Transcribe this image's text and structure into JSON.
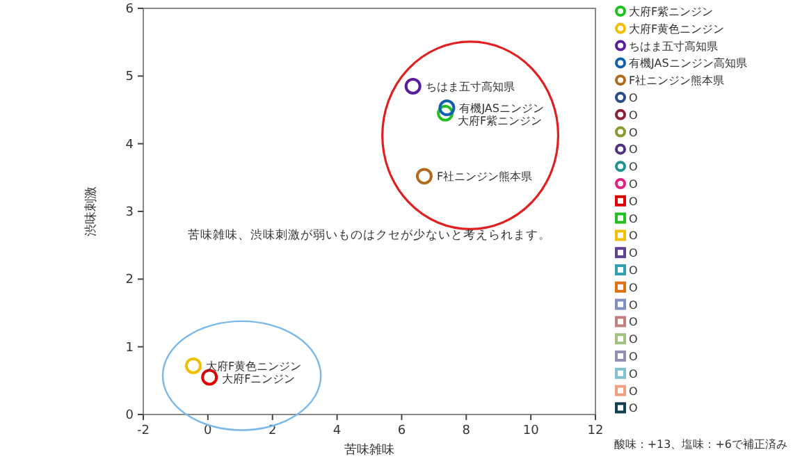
{
  "chart_data": {
    "type": "scatter",
    "xlabel": "苦味雑味",
    "ylabel": "渋味刺激",
    "xlim": [
      -2,
      12
    ],
    "ylim": [
      0,
      6
    ],
    "xticks": [
      -2,
      0,
      2,
      4,
      6,
      8,
      10,
      12
    ],
    "yticks": [
      0,
      1,
      2,
      3,
      4,
      5,
      6
    ],
    "grid": false,
    "legend": "right",
    "series": [
      {
        "name": "大府F紫ニンジン",
        "color": "#20c020",
        "marker": "circle",
        "x": [
          7.35
        ],
        "values": [
          4.45
        ]
      },
      {
        "color": "#e00000",
        "marker": "circle",
        "x": [
          0.05
        ],
        "values": [
          0.55
        ]
      },
      {
        "name": "大府F黄色ニンジン",
        "color": "#f0c000",
        "marker": "circle",
        "x": [
          -0.45
        ],
        "values": [
          0.72
        ]
      },
      {
        "name": "ちはま五寸高知県",
        "color": "#5a1e9a",
        "marker": "circle",
        "x": [
          6.35
        ],
        "values": [
          4.85
        ]
      },
      {
        "name": "有機JASニンジン高知県",
        "color": "#1060b0",
        "marker": "circle",
        "x": [
          7.4
        ],
        "values": [
          4.53
        ]
      },
      {
        "name": "F社ニンジン熊本県",
        "color": "#b06a1e",
        "marker": "circle",
        "x": [
          6.7
        ],
        "values": [
          3.52
        ]
      },
      {
        "name": "O",
        "color": "#2a4a8a",
        "marker": "circle"
      },
      {
        "name": "O",
        "color": "#8a2030",
        "marker": "circle"
      },
      {
        "name": "O",
        "color": "#8a9a30",
        "marker": "circle"
      },
      {
        "name": "O",
        "color": "#503080",
        "marker": "circle"
      },
      {
        "name": "O",
        "color": "#209090",
        "marker": "circle"
      },
      {
        "name": "O",
        "color": "#e02080",
        "marker": "circle"
      },
      {
        "name": "O",
        "color": "#e00000",
        "marker": "square"
      },
      {
        "name": "O",
        "color": "#20c020",
        "marker": "square"
      },
      {
        "name": "O",
        "color": "#f0c000",
        "marker": "square"
      },
      {
        "name": "O",
        "color": "#604090",
        "marker": "square"
      },
      {
        "name": "O",
        "color": "#30a0b0",
        "marker": "square"
      },
      {
        "name": "O",
        "color": "#e07010",
        "marker": "square"
      },
      {
        "name": "O",
        "color": "#8090c0",
        "marker": "square"
      },
      {
        "name": "O",
        "color": "#c08080",
        "marker": "square"
      },
      {
        "name": "O",
        "color": "#a0c080",
        "marker": "square"
      },
      {
        "name": "O",
        "color": "#9090b0",
        "marker": "square"
      },
      {
        "name": "O",
        "color": "#80c0d0",
        "marker": "square"
      },
      {
        "name": "O",
        "color": "#f0a080",
        "marker": "square"
      },
      {
        "name": "O",
        "color": "#104050",
        "marker": "square"
      }
    ],
    "annotations": [
      {
        "text": "大府F紫ニンジン",
        "x": 7.35,
        "y": 4.45
      },
      {
        "text": "大府Fニンジン",
        "x": 0.05,
        "y": 0.55
      },
      {
        "text": "大府F黄色ニンジン",
        "x": -0.45,
        "y": 0.72
      },
      {
        "text": "ちはま五寸高知県",
        "x": 6.35,
        "y": 4.85
      },
      {
        "text": "有機JASニンジン",
        "x": 7.4,
        "y": 4.53
      },
      {
        "text": "F社ニンジン熊本県",
        "x": 6.7,
        "y": 3.52
      },
      "苦味雑味、渋味刺激が弱いものはクセが少ないと考えられます。",
      "酸味：+13、塩味：+6で補正済み"
    ]
  }
}
